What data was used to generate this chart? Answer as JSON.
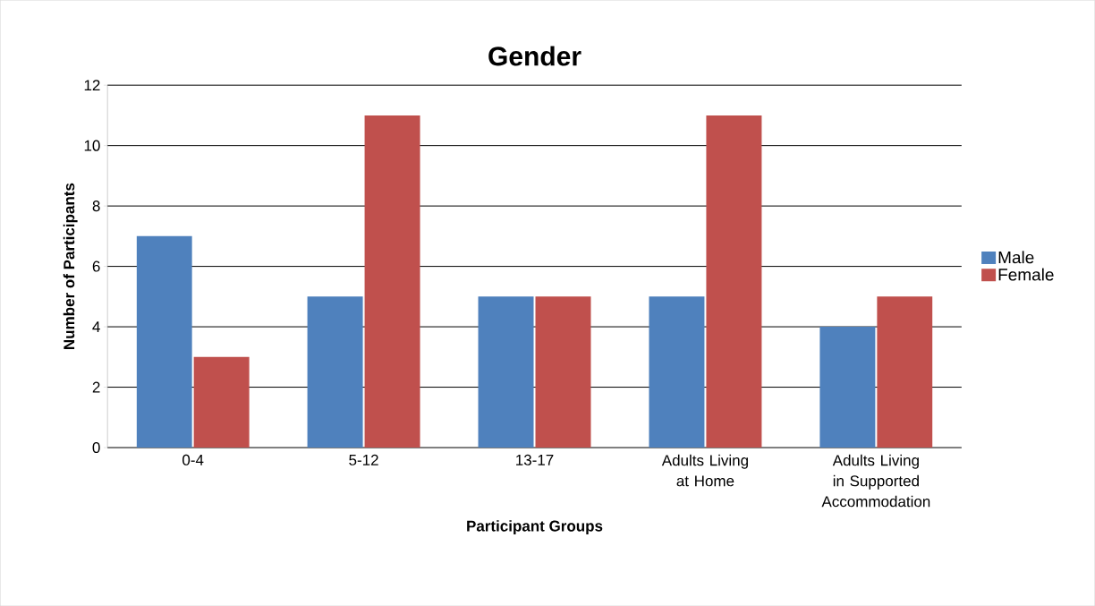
{
  "chart_data": {
    "type": "bar",
    "title": "Gender",
    "xlabel": "Participant Groups",
    "ylabel": "Number of Participants",
    "categories": [
      "0-4",
      "5-12",
      "13-17",
      "Adults Living at Home",
      "Adults Living in Supported Accommodation"
    ],
    "series": [
      {
        "name": "Male",
        "color": "#4f81bd",
        "values": [
          7,
          5,
          5,
          5,
          4
        ]
      },
      {
        "name": "Female",
        "color": "#c0504d",
        "values": [
          3,
          11,
          5,
          11,
          5
        ]
      }
    ],
    "ylim": [
      0,
      12
    ],
    "yticks": [
      0,
      2,
      4,
      6,
      8,
      10,
      12
    ],
    "grid": "y",
    "legend": "right"
  }
}
